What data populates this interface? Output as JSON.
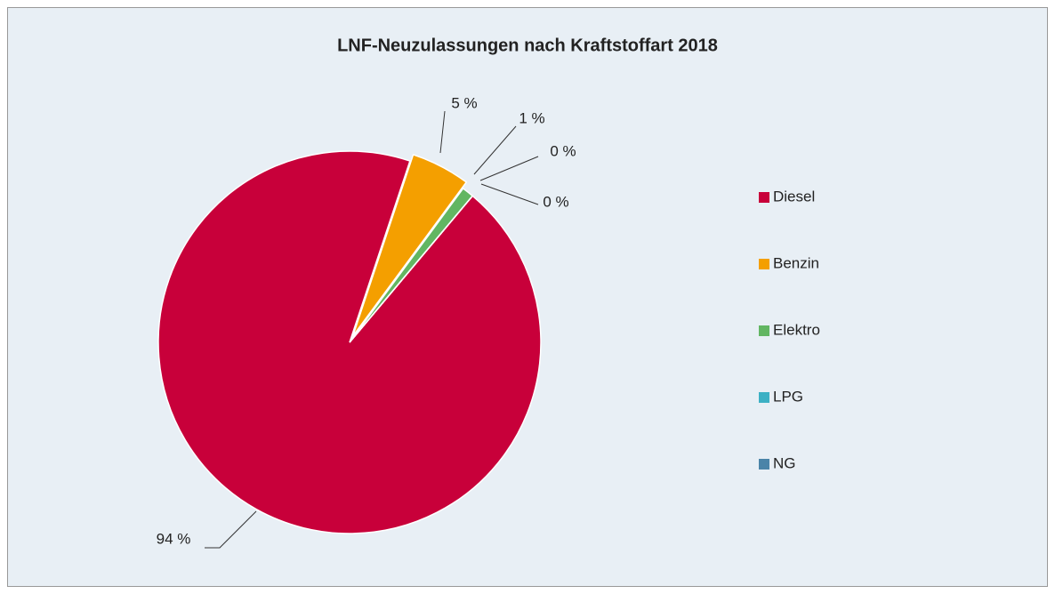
{
  "chart_data": {
    "type": "pie",
    "title": "LNF-Neuzulassungen nach Kraftstoffart 2018",
    "categories": [
      "Diesel",
      "Benzin",
      "Elektro",
      "LPG",
      "NG"
    ],
    "values": [
      94,
      5,
      1,
      0,
      0
    ],
    "value_labels": [
      "94 %",
      "5 %",
      "1 %",
      "0 %",
      "0 %"
    ],
    "colors": [
      "#c8003a",
      "#f49f00",
      "#62b662",
      "#3cb0c4",
      "#4a84a8"
    ],
    "legend": "right"
  }
}
